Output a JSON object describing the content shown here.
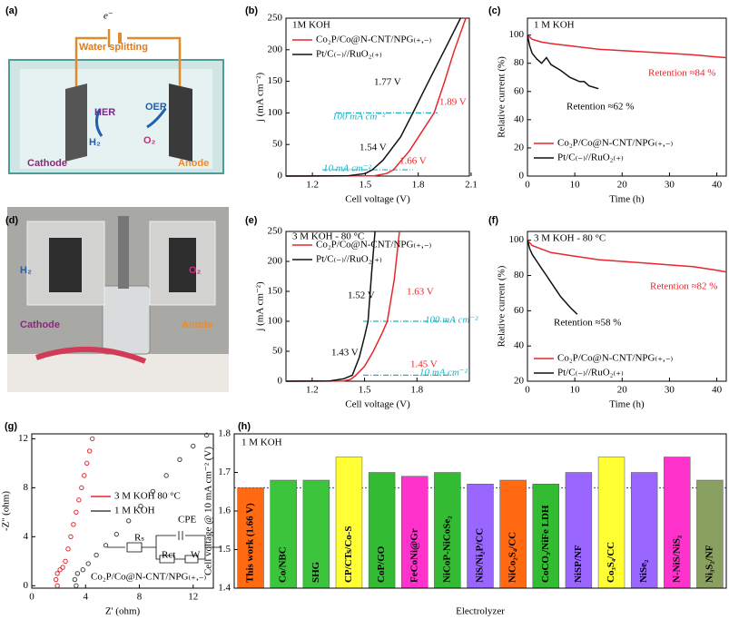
{
  "photo_a": {
    "panel": "(a)",
    "texts": [
      "e⁻",
      "Water splitting",
      "HER",
      "OER",
      "H₂",
      "O₂",
      "Cathode",
      "Anode"
    ]
  },
  "photo_d": {
    "panel": "(d)",
    "texts": [
      "H₂",
      "O₂",
      "Cathode",
      "Anode"
    ]
  },
  "chart_data": [
    {
      "panel": "(b)",
      "type": "line",
      "xlabel": "Cell voltage (V)",
      "ylabel": "j (mA cm⁻²)",
      "xlim": [
        1.05,
        2.09
      ],
      "ylim": [
        0,
        250
      ],
      "xticks": [
        1.2,
        1.5,
        1.8,
        2.1
      ],
      "yticks": [
        0,
        50,
        100,
        150,
        200,
        250
      ],
      "series": [
        {
          "name": "Co₂P/Co@N-CNT/NPG₍₊,₋₎",
          "color": "#e8262b",
          "x": [
            1.05,
            1.55,
            1.62,
            1.66,
            1.75,
            1.82,
            1.89,
            1.95,
            2.0,
            2.07
          ],
          "values": [
            0,
            0.5,
            4,
            10,
            40,
            70,
            100,
            150,
            195,
            250
          ]
        },
        {
          "name": "Pt/C₍₋₎//RuO₂₍₊₎",
          "color": "#111111",
          "x": [
            1.05,
            1.4,
            1.5,
            1.54,
            1.6,
            1.7,
            1.77,
            1.85,
            1.95,
            2.04
          ],
          "values": [
            0,
            0.5,
            4,
            10,
            25,
            62,
            100,
            145,
            200,
            250
          ]
        }
      ],
      "ref_lines": [
        {
          "value": 100,
          "color": "#1fb3c4"
        },
        {
          "value": 10,
          "color": "#1fb3c4"
        }
      ],
      "annotations": [
        "1M KOH",
        "1.77 V",
        "1.89 V",
        "100 mA cm⁻²",
        "1.54 V",
        "1.66 V",
        "10 mA cm⁻²"
      ]
    },
    {
      "panel": "(c)",
      "type": "line",
      "xlabel": "Time (h)",
      "ylabel": "Relative current (%)",
      "xlim": [
        0,
        42
      ],
      "ylim": [
        0,
        112
      ],
      "xticks": [
        0,
        10,
        20,
        30,
        40
      ],
      "yticks": [
        0,
        20,
        40,
        60,
        80,
        100
      ],
      "series": [
        {
          "name": "Co₂P/Co@N-CNT/NPG₍₊,₋₎",
          "color": "#e8262b",
          "x": [
            0,
            1,
            3,
            5,
            10,
            15,
            20,
            25,
            30,
            35,
            40,
            42
          ],
          "values": [
            100,
            97,
            95,
            94,
            92,
            90,
            89,
            88,
            87,
            86,
            84.5,
            84
          ]
        },
        {
          "name": "Pt/C₍₋₎//RuO₂₍₊₎",
          "color": "#111111",
          "x": [
            0,
            0.5,
            1,
            2,
            3,
            4,
            5,
            7,
            9,
            11,
            12,
            13,
            15
          ],
          "values": [
            100,
            92,
            87,
            83,
            80,
            84,
            79,
            75,
            70,
            67,
            67,
            64,
            62
          ]
        }
      ],
      "annotations": [
        "1 M KOH",
        "Retention ≈84 %",
        "Retention ≈62 %"
      ]
    },
    {
      "panel": "(e)",
      "type": "line",
      "xlabel": "Cell voltage (V)",
      "ylabel": "j (mA cm⁻²)",
      "xlim": [
        1.05,
        2.1
      ],
      "ylim": [
        0,
        250
      ],
      "xticks": [
        1.2,
        1.5,
        1.8
      ],
      "yticks": [
        0,
        50,
        100,
        150,
        200,
        250
      ],
      "series": [
        {
          "name": "Co₂P/Co@N-CNT/NPG₍₊,₋₎",
          "color": "#e8262b",
          "x": [
            1.05,
            1.38,
            1.42,
            1.45,
            1.5,
            1.55,
            1.6,
            1.63,
            1.67,
            1.7
          ],
          "values": [
            0,
            0.5,
            3,
            10,
            25,
            50,
            80,
            100,
            170,
            250
          ]
        },
        {
          "name": "Pt/C₍₋₎//RuO₂₍₊₎",
          "color": "#111111",
          "x": [
            1.05,
            1.3,
            1.38,
            1.43,
            1.47,
            1.5,
            1.52,
            1.54,
            1.56
          ],
          "values": [
            0,
            0.5,
            4,
            10,
            40,
            75,
            100,
            180,
            250
          ]
        }
      ],
      "ref_lines": [
        {
          "value": 100,
          "color": "#1fb3c4"
        },
        {
          "value": 10,
          "color": "#1fb3c4"
        }
      ],
      "annotations": [
        "3 M KOH - 80 °C",
        "1.52 V",
        "1.63 V",
        "100 mA cm⁻²",
        "1.43 V",
        "1.45 V",
        "10 mA cm⁻²"
      ]
    },
    {
      "panel": "(f)",
      "type": "line",
      "xlabel": "Time (h)",
      "ylabel": "Relative current (%)",
      "xlim": [
        0,
        42
      ],
      "ylim": [
        20,
        105
      ],
      "xticks": [
        0,
        10,
        20,
        30,
        40
      ],
      "yticks": [
        20,
        40,
        60,
        80,
        100
      ],
      "series": [
        {
          "name": "Co₂P/Co@N-CNT/NPG₍₊,₋₎",
          "color": "#e8262b",
          "x": [
            0,
            1,
            3,
            5,
            10,
            15,
            20,
            25,
            30,
            35,
            40,
            42
          ],
          "values": [
            100,
            97,
            95,
            93,
            91,
            89,
            88,
            87,
            86,
            85,
            83,
            82
          ]
        },
        {
          "name": "Pt/C₍₋₎//RuO₂₍₊₎",
          "color": "#111111",
          "x": [
            0,
            0.5,
            1,
            2,
            3,
            4,
            5,
            6,
            7,
            8,
            9,
            10.5
          ],
          "values": [
            100,
            95,
            92,
            88,
            84,
            80,
            76,
            72,
            68,
            65,
            62,
            58
          ]
        }
      ],
      "annotations": [
        "3 M KOH - 80 °C",
        "Retention ≈82 %",
        "Retention ≈58 %"
      ]
    },
    {
      "panel": "(g)",
      "type": "scatter",
      "xlabel": "Z' (ohm)",
      "ylabel": "-Z'' (ohm)",
      "xlim": [
        0,
        13.5
      ],
      "ylim": [
        -0.2,
        12.4
      ],
      "xticks": [
        0,
        4,
        8,
        12
      ],
      "yticks": [
        0,
        4,
        8,
        12
      ],
      "series": [
        {
          "name": "3 M KOH 80 °C",
          "color": "#e8262b",
          "x": [
            1.9,
            1.8,
            1.9,
            2.1,
            2.3,
            2.5,
            2.7,
            2.9,
            3.1,
            3.3,
            3.5,
            3.7,
            3.9,
            4.1,
            4.3,
            4.5
          ],
          "values": [
            0,
            0.5,
            1,
            1.3,
            1.5,
            2,
            3,
            4,
            5,
            6,
            7,
            8,
            9,
            10,
            11,
            12
          ]
        },
        {
          "name": "1 M KOH",
          "color": "#444444",
          "x": [
            3.3,
            3.2,
            3.4,
            3.8,
            4.2,
            4.8,
            5.5,
            6.3,
            7.2,
            8.1,
            9,
            10,
            11,
            12,
            13
          ],
          "values": [
            0,
            0.5,
            1,
            1.3,
            1.8,
            2.5,
            3.3,
            4.2,
            5.3,
            6.5,
            7.7,
            9,
            10.3,
            11.4,
            12.3
          ]
        }
      ],
      "annotations": [
        "Co₂P/Co@N-CNT/NPG₍₊,₋₎",
        "Rₛ",
        "CPE",
        "Rct",
        "W"
      ]
    },
    {
      "panel": "(h)",
      "type": "bar",
      "xlabel": "Electrolyzer",
      "ylabel": "Cell voltage @ 10 mA cm⁻² (V)",
      "ylim": [
        1.4,
        1.8
      ],
      "yticks": [
        1.4,
        1.5,
        1.6,
        1.7,
        1.8
      ],
      "categories": [
        "This work (1.66 V)",
        "Co/NBC",
        "SHG",
        "CP/CTs/Co-S",
        "CoP/GO",
        "FeCoNi@Gr",
        "NiCoP-NiCoSe₂",
        "NiS/Ni₂P/CC",
        "NiCo₂S₄/CC",
        "CoCO₃/NiFe LDH",
        "NiSP/NF",
        "Co₃S₄/CC",
        "NiSe₂",
        "N-NiS/NiS₂",
        "Ni₃S₂/NF"
      ],
      "values": [
        1.66,
        1.68,
        1.68,
        1.74,
        1.7,
        1.69,
        1.7,
        1.67,
        1.68,
        1.67,
        1.7,
        1.74,
        1.7,
        1.74,
        1.68
      ],
      "colors": [
        "#ff6a13",
        "#3cc43c",
        "#3cc43c",
        "#ffff33",
        "#33bb33",
        "#ff33cc",
        "#33bb33",
        "#9966ff",
        "#ff6a13",
        "#33bb33",
        "#9966ff",
        "#ffff33",
        "#9966ff",
        "#ff33cc",
        "#8aa060"
      ],
      "ref_lines": [
        {
          "value": 1.66,
          "color": "#1f6fd0"
        }
      ],
      "annotations": [
        "1 M KOH"
      ]
    }
  ]
}
